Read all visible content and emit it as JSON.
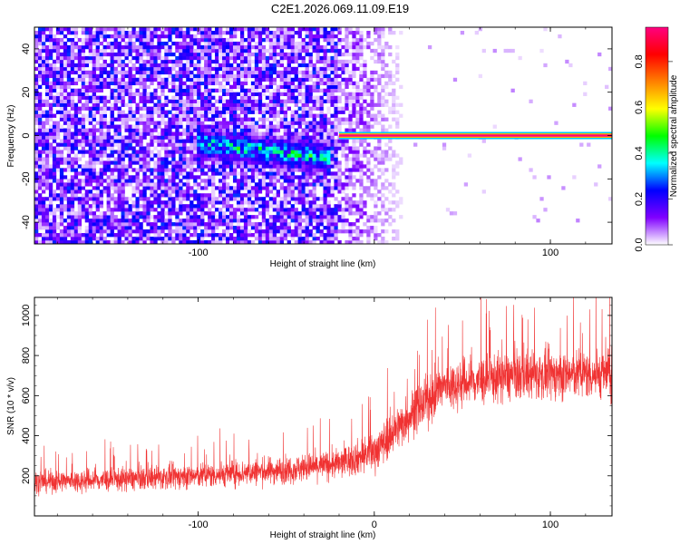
{
  "title": "C2E1.2026.069.11.09.E19",
  "chart_data": [
    {
      "type": "heatmap",
      "xlabel": "Height of straight line (km)",
      "ylabel": "Frequency (Hz)",
      "xlim": [
        -193,
        135
      ],
      "ylim": [
        -50,
        50
      ],
      "xticks": [
        -100,
        0,
        100
      ],
      "xtick_labels": [
        "-100",
        "",
        "100"
      ],
      "yticks": [
        -40,
        -20,
        0,
        20,
        40
      ],
      "ytick_labels": [
        "-40",
        "-20",
        "0",
        "20",
        "40"
      ],
      "colorbar": {
        "label": "Normalized spectral amplitude",
        "range": [
          0,
          0.95
        ],
        "ticks": [
          0.0,
          0.2,
          0.4,
          0.6,
          0.8
        ],
        "tick_labels": [
          "0.0",
          "0.2",
          "0.4",
          "0.6",
          "0.8"
        ],
        "colors": [
          "#ffffff",
          "#8000ff",
          "#0000ff",
          "#00ffff",
          "#00ff00",
          "#ffff00",
          "#ff8000",
          "#ff0000",
          "#ff0080"
        ]
      },
      "features": {
        "noise_region_x": [
          -193,
          -20
        ],
        "fading_region_x": [
          -20,
          20
        ],
        "clean_carrier_x": [
          -20,
          135
        ],
        "carrier_frequency": 0,
        "carrier_amplitude": 0.95,
        "diffuse_band_x": [
          -100,
          -25
        ],
        "diffuse_band_freq": [
          -15,
          8
        ],
        "diffuse_band_amplitude": 0.35,
        "background_amplitude": 0.12
      }
    },
    {
      "type": "line",
      "xlabel": "Height of straight line (km)",
      "ylabel": "SNR (10 * v/v)",
      "xlim": [
        -193,
        135
      ],
      "ylim": [
        0,
        1090
      ],
      "xticks": [
        -100,
        0,
        100
      ],
      "xtick_labels": [
        "-100",
        "0",
        "100"
      ],
      "yticks": [
        200,
        400,
        600,
        800,
        1000
      ],
      "ytick_labels": [
        "200",
        "400",
        "600",
        "800",
        "1000"
      ],
      "line_color": "#f03232",
      "trend": {
        "x": [
          -193,
          -150,
          -100,
          -50,
          -20,
          0,
          20,
          40,
          80,
          135
        ],
        "mean": [
          170,
          180,
          200,
          230,
          260,
          320,
          500,
          650,
          700,
          710
        ],
        "spread": [
          90,
          95,
          100,
          110,
          120,
          160,
          190,
          200,
          200,
          200
        ]
      }
    }
  ]
}
